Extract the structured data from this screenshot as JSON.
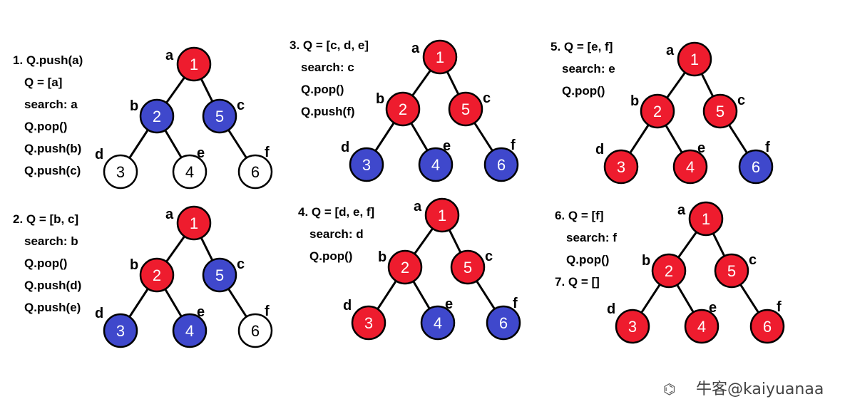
{
  "colors": {
    "red": "#ee1c2e",
    "blue": "#3f48cc",
    "white": "#ffffff",
    "red_text": "#ffffff",
    "blue_text": "#ffffff",
    "white_text": "#000000"
  },
  "edges": [
    [
      "a",
      "b"
    ],
    [
      "a",
      "c"
    ],
    [
      "b",
      "d"
    ],
    [
      "b",
      "e"
    ],
    [
      "c",
      "f"
    ]
  ],
  "panels": [
    {
      "steps": [
        "1. Q.push(a)",
        "Q = [a]",
        "search: a",
        "Q.pop()",
        "Q.push(b)",
        "Q.push(c)"
      ],
      "nodes": [
        {
          "id": "a",
          "num": "1",
          "color": "red"
        },
        {
          "id": "b",
          "num": "2",
          "color": "blue"
        },
        {
          "id": "c",
          "num": "5",
          "color": "blue"
        },
        {
          "id": "d",
          "num": "3",
          "color": "white"
        },
        {
          "id": "e",
          "num": "4",
          "color": "white"
        },
        {
          "id": "f",
          "num": "6",
          "color": "white"
        }
      ]
    },
    {
      "steps": [
        "2. Q = [b, c]",
        "search: b",
        "Q.pop()",
        "Q.push(d)",
        "Q.push(e)"
      ],
      "nodes": [
        {
          "id": "a",
          "num": "1",
          "color": "red"
        },
        {
          "id": "b",
          "num": "2",
          "color": "red"
        },
        {
          "id": "c",
          "num": "5",
          "color": "blue"
        },
        {
          "id": "d",
          "num": "3",
          "color": "blue"
        },
        {
          "id": "e",
          "num": "4",
          "color": "blue"
        },
        {
          "id": "f",
          "num": "6",
          "color": "white"
        }
      ]
    },
    {
      "steps": [
        "3. Q = [c, d, e]",
        "search: c",
        "Q.pop()",
        "Q.push(f)"
      ],
      "nodes": [
        {
          "id": "a",
          "num": "1",
          "color": "red"
        },
        {
          "id": "b",
          "num": "2",
          "color": "red"
        },
        {
          "id": "c",
          "num": "5",
          "color": "red"
        },
        {
          "id": "d",
          "num": "3",
          "color": "blue"
        },
        {
          "id": "e",
          "num": "4",
          "color": "blue"
        },
        {
          "id": "f",
          "num": "6",
          "color": "blue"
        }
      ]
    },
    {
      "steps": [
        "4. Q = [d, e, f]",
        "search: d",
        "Q.pop()"
      ],
      "nodes": [
        {
          "id": "a",
          "num": "1",
          "color": "red"
        },
        {
          "id": "b",
          "num": "2",
          "color": "red"
        },
        {
          "id": "c",
          "num": "5",
          "color": "red"
        },
        {
          "id": "d",
          "num": "3",
          "color": "red"
        },
        {
          "id": "e",
          "num": "4",
          "color": "blue"
        },
        {
          "id": "f",
          "num": "6",
          "color": "blue"
        }
      ]
    },
    {
      "steps": [
        "5. Q = [e, f]",
        "search: e",
        "Q.pop()"
      ],
      "nodes": [
        {
          "id": "a",
          "num": "1",
          "color": "red"
        },
        {
          "id": "b",
          "num": "2",
          "color": "red"
        },
        {
          "id": "c",
          "num": "5",
          "color": "red"
        },
        {
          "id": "d",
          "num": "3",
          "color": "red"
        },
        {
          "id": "e",
          "num": "4",
          "color": "red"
        },
        {
          "id": "f",
          "num": "6",
          "color": "blue"
        }
      ]
    },
    {
      "steps": [
        "6. Q = [f]",
        "search: f",
        "Q.pop()",
        "7. Q = []"
      ],
      "nodes": [
        {
          "id": "a",
          "num": "1",
          "color": "red"
        },
        {
          "id": "b",
          "num": "2",
          "color": "red"
        },
        {
          "id": "c",
          "num": "5",
          "color": "red"
        },
        {
          "id": "d",
          "num": "3",
          "color": "red"
        },
        {
          "id": "e",
          "num": "4",
          "color": "red"
        },
        {
          "id": "f",
          "num": "6",
          "color": "red"
        }
      ]
    }
  ],
  "watermark": "牛客@kaiyuanaa"
}
